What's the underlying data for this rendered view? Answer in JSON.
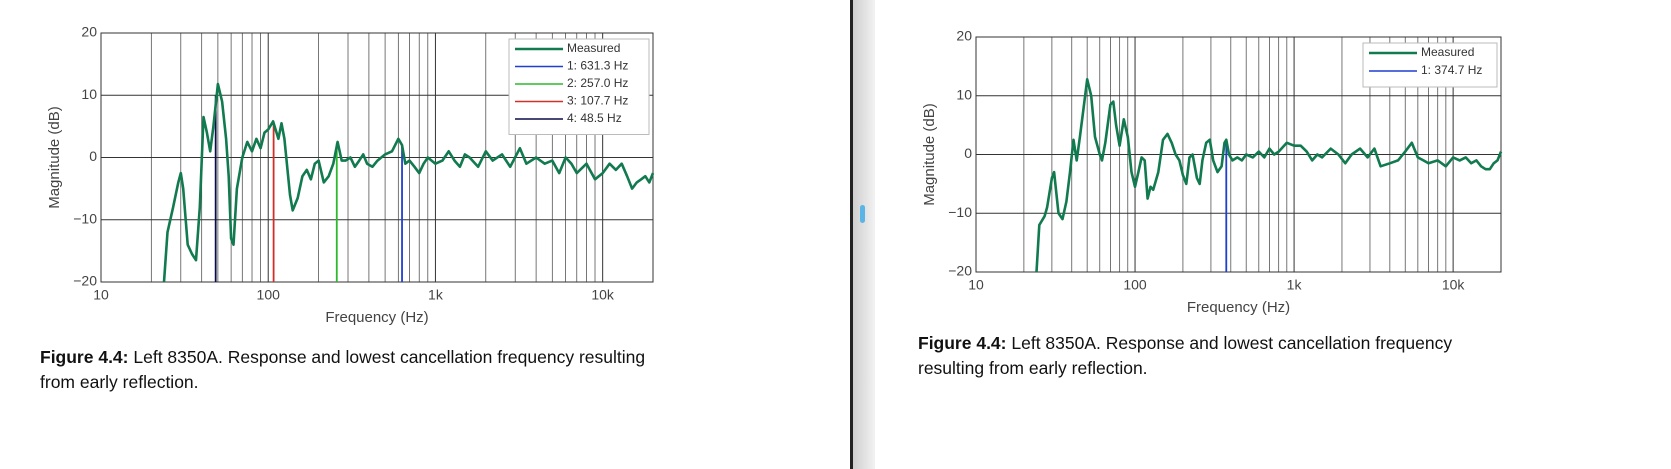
{
  "chart_data": [
    {
      "type": "line",
      "x_label": "Frequency (Hz)",
      "y_label": "Magnitude (dB)",
      "xscale": "log",
      "grid": true,
      "minor_grid": true,
      "legend": "upper right",
      "xlim": [
        10,
        20000
      ],
      "ylim": [
        -20,
        20
      ],
      "xticks": [
        10,
        100,
        {
          "value": 1000,
          "label": "1k"
        },
        {
          "value": 10000,
          "label": "10k"
        }
      ],
      "yticks": [
        {
          "value": -20,
          "label": "−20"
        },
        {
          "value": -10,
          "label": "−10"
        },
        0,
        10,
        20
      ],
      "series": [
        {
          "name": "Measured",
          "color": "#117a4f",
          "x": [
            23.8,
            25,
            27,
            29,
            30,
            31,
            33,
            35,
            37,
            39,
            41,
            43,
            45,
            47,
            50,
            53,
            56,
            58,
            60,
            62,
            65,
            70,
            75,
            80,
            85,
            90,
            95,
            100,
            107,
            115,
            120,
            125,
            135,
            140,
            150,
            160,
            170,
            180,
            190,
            200,
            215,
            230,
            245,
            260,
            275,
            290,
            310,
            330,
            350,
            370,
            390,
            420,
            450,
            500,
            550,
            600,
            631,
            660,
            700,
            750,
            800,
            850,
            900,
            1000,
            1100,
            1200,
            1300,
            1400,
            1500,
            1600,
            1800,
            2000,
            2200,
            2500,
            2800,
            3200,
            3500,
            4000,
            4500,
            5000,
            5500,
            6000,
            6500,
            7000,
            8000,
            9000,
            10000,
            11000,
            12000,
            13000,
            14000,
            15000,
            16000,
            17000,
            18000,
            19000,
            20000
          ],
          "values": [
            -20,
            -12,
            -8,
            -4,
            -2.5,
            -5,
            -14,
            -15.5,
            -16.5,
            -8,
            6.5,
            4,
            1,
            5,
            11.8,
            9,
            3,
            -3,
            -13,
            -14,
            -5,
            0,
            2.5,
            1,
            3,
            1.5,
            4,
            4.5,
            5.8,
            3,
            5.5,
            3,
            -6,
            -8.5,
            -6.5,
            -3,
            -2,
            -3.5,
            -1,
            -0.5,
            -4,
            -3,
            -1,
            2.5,
            -0.5,
            -0.5,
            0,
            -1.5,
            -0.5,
            0.5,
            -1,
            -1.5,
            -0.5,
            0.5,
            1,
            3,
            2,
            -1,
            -0.5,
            -1.5,
            -2.5,
            -1,
            0,
            -1,
            -0.5,
            1,
            -0.5,
            -1.5,
            0.5,
            0,
            -1.5,
            1,
            -0.5,
            0.5,
            -1.5,
            1.5,
            -1,
            0,
            -1,
            -0.5,
            -2.5,
            0,
            -1,
            -2.5,
            -1,
            -3.5,
            -2.5,
            -1,
            -2,
            -1,
            -3,
            -5,
            -4,
            -3.5,
            -3,
            -4,
            -2.5
          ]
        }
      ],
      "markers": [
        {
          "name": "1: 631.3 Hz",
          "color": "#1f3fd0",
          "x": 631.3,
          "value": 2
        },
        {
          "name": "2: 257.0 Hz",
          "color": "#2db82d",
          "x": 257.0,
          "value": 2.3
        },
        {
          "name": "3: 107.7 Hz",
          "color": "#d0302a",
          "x": 107.7,
          "value": 5.8
        },
        {
          "name": "4: 48.5 Hz",
          "color": "#0b0b4a",
          "x": 48.5,
          "value": 10
        }
      ]
    },
    {
      "type": "line",
      "x_label": "Frequency (Hz)",
      "y_label": "Magnitude (dB)",
      "xscale": "log",
      "grid": true,
      "minor_grid": true,
      "legend": "upper right",
      "xlim": [
        10,
        20000
      ],
      "ylim": [
        -20,
        20
      ],
      "xticks": [
        10,
        100,
        {
          "value": 1000,
          "label": "1k"
        },
        {
          "value": 10000,
          "label": "10k"
        }
      ],
      "yticks": [
        {
          "value": -20,
          "label": "−20"
        },
        {
          "value": -10,
          "label": "−10"
        },
        0,
        10,
        20
      ],
      "series": [
        {
          "name": "Measured",
          "color": "#117a4f",
          "x": [
            24,
            25,
            27,
            28,
            30,
            31,
            33,
            35,
            37,
            39,
            41,
            43,
            45,
            47,
            50,
            53,
            56,
            60,
            62,
            65,
            70,
            73,
            76,
            80,
            85,
            90,
            95,
            100,
            105,
            110,
            115,
            120,
            125,
            130,
            140,
            150,
            160,
            170,
            180,
            190,
            200,
            210,
            220,
            230,
            245,
            255,
            265,
            280,
            295,
            310,
            330,
            350,
            365,
            374.7,
            390,
            410,
            440,
            470,
            500,
            550,
            600,
            650,
            700,
            750,
            800,
            900,
            1000,
            1100,
            1200,
            1300,
            1400,
            1500,
            1700,
            1900,
            2100,
            2300,
            2600,
            2900,
            3200,
            3500,
            4000,
            4500,
            5000,
            5500,
            6000,
            6500,
            7000,
            8000,
            9000,
            10000,
            11000,
            12000,
            13000,
            14000,
            15000,
            16000,
            17000,
            18000,
            19000,
            20000
          ],
          "values": [
            -20,
            -12,
            -10.5,
            -9,
            -4,
            -3,
            -10,
            -11,
            -8,
            -3,
            2.5,
            -1,
            3,
            7,
            12.8,
            10,
            3,
            0,
            -1,
            2,
            8.5,
            9,
            5,
            1.5,
            6,
            3,
            -3,
            -5.5,
            -3,
            -0.5,
            -1,
            -7.5,
            -5.5,
            -6,
            -3,
            2.5,
            3.5,
            2,
            0,
            -1,
            -3.5,
            -5,
            -0.5,
            0,
            -4,
            -5,
            -1,
            2,
            2.5,
            -1,
            -3,
            -2,
            2,
            2.5,
            0,
            -1,
            -0.5,
            -1,
            0,
            -0.5,
            0.5,
            -0.5,
            1,
            0,
            0.5,
            2,
            1.5,
            1.5,
            0.5,
            -1,
            0,
            -0.5,
            1,
            0,
            -1.5,
            0,
            1,
            -0.5,
            1,
            -2,
            -1.5,
            -1,
            0.5,
            2,
            -0.5,
            -1,
            -1.5,
            -1,
            -2,
            -0.5,
            -1,
            -0.5,
            -1.5,
            -1,
            -2,
            -2.5,
            -2.5,
            -1.5,
            -1,
            0.5
          ]
        }
      ],
      "markers": [
        {
          "name": "1: 374.7 Hz",
          "color": "#1f3fd0",
          "x": 374.7,
          "value": 2.5
        }
      ]
    }
  ],
  "captions": [
    {
      "label": "Figure 4.4:",
      "text": "Left 8350A. Response and lowest cancellation frequency resulting from early reflection."
    },
    {
      "label": "Figure 4.4:",
      "text": "Left 8350A. Response and lowest cancellation frequency resulting from early reflection."
    }
  ]
}
